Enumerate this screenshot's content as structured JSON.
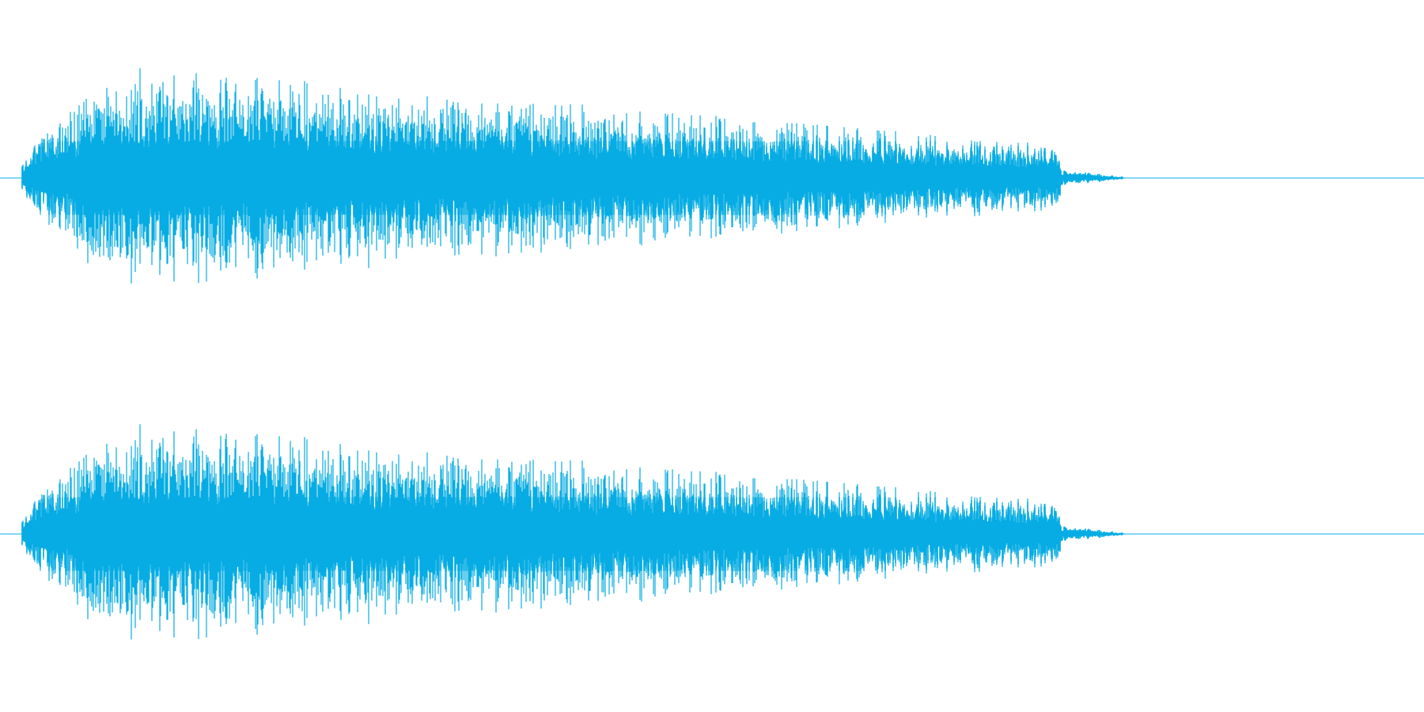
{
  "waveform": {
    "color": "#06ace3",
    "channels": [
      {
        "channel": "left"
      },
      {
        "channel": "right"
      }
    ],
    "duration_fraction_with_signal": 0.85,
    "attack_fraction": 0.06,
    "dense_until_fraction": 0.74
  }
}
